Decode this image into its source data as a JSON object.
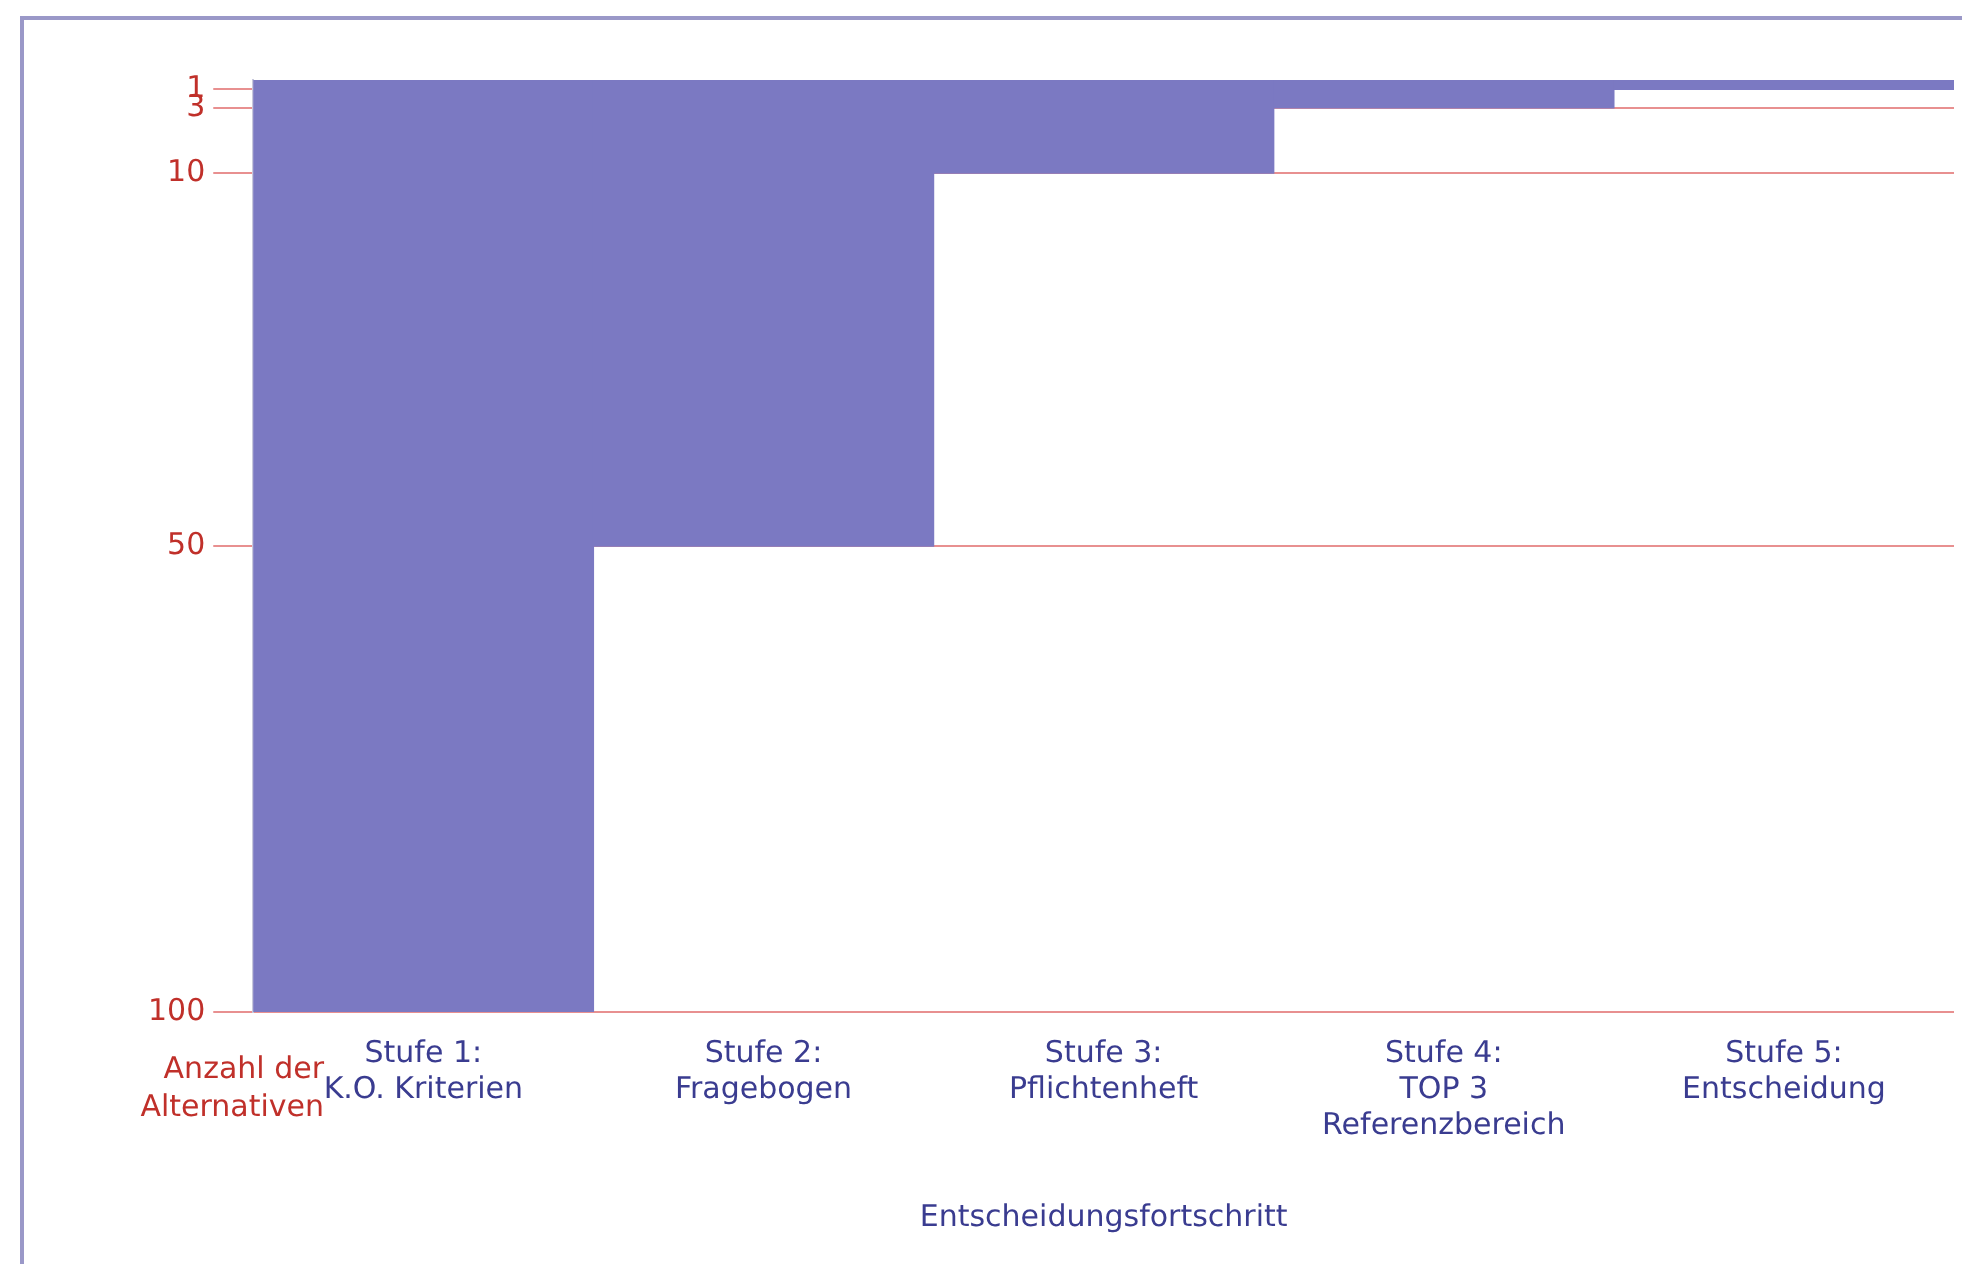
{
  "chart_data": {
    "type": "bar",
    "categories": [
      "Stufe 1:\nK.O. Kriterien",
      "Stufe 2:\nFragebogen",
      "Stufe 3:\nPflichtenheft",
      "Stufe 4:\nTOP 3\nReferenzbereich",
      "Stufe 5:\nEntscheidung"
    ],
    "values": [
      100,
      50,
      10,
      3,
      1
    ],
    "color": "#7b79c2",
    "xlabel": "Entscheidungsfortschritt",
    "ylabel": "Anzahl der Alternativen",
    "ylim": [
      100,
      0
    ],
    "yticks": [
      1,
      3,
      10,
      50,
      100
    ],
    "grid": "y"
  }
}
